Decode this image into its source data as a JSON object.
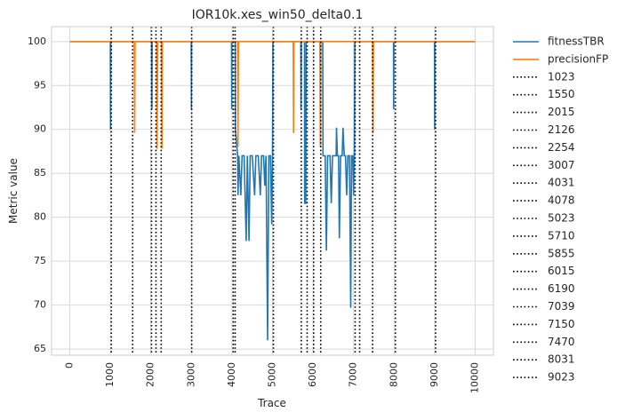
{
  "chart_data": {
    "type": "line",
    "title": "IOR10k.xes_win50_delta0.1",
    "xlabel": "Trace",
    "ylabel": "Metric value",
    "xlim": [
      -450,
      10450
    ],
    "ylim": [
      64.3,
      101.7
    ],
    "x_ticks": [
      0,
      1000,
      2000,
      3000,
      4000,
      5000,
      6000,
      7000,
      8000,
      9000,
      10000
    ],
    "y_ticks": [
      65,
      70,
      75,
      80,
      85,
      90,
      95,
      100
    ],
    "grid": true,
    "legend_position": "outside-right",
    "series": [
      {
        "name": "fitnessTBR",
        "color": "#1f77b4",
        "points": [
          [
            0,
            100
          ],
          [
            1000,
            100
          ],
          [
            1005,
            90
          ],
          [
            1010,
            100
          ],
          [
            2020,
            100
          ],
          [
            2025,
            92.3
          ],
          [
            2030,
            100
          ],
          [
            2995,
            100
          ],
          [
            3000,
            92.3
          ],
          [
            3005,
            100
          ],
          [
            3990,
            100
          ],
          [
            3995,
            92.3
          ],
          [
            4000,
            100
          ],
          [
            4080,
            100
          ],
          [
            4085,
            90
          ],
          [
            4140,
            87
          ],
          [
            4150,
            82.5
          ],
          [
            4170,
            87
          ],
          [
            4220,
            82.5
          ],
          [
            4250,
            87
          ],
          [
            4300,
            87
          ],
          [
            4350,
            77.3
          ],
          [
            4380,
            87
          ],
          [
            4420,
            77.3
          ],
          [
            4450,
            87
          ],
          [
            4500,
            87
          ],
          [
            4560,
            82.5
          ],
          [
            4590,
            87
          ],
          [
            4650,
            87
          ],
          [
            4700,
            82.5
          ],
          [
            4730,
            87
          ],
          [
            4780,
            87
          ],
          [
            4810,
            83.6
          ],
          [
            4840,
            87
          ],
          [
            4880,
            66
          ],
          [
            4910,
            87
          ],
          [
            4950,
            87
          ],
          [
            4980,
            79.2
          ],
          [
            5000,
            87
          ],
          [
            5010,
            100
          ],
          [
            5700,
            100
          ],
          [
            5705,
            92.3
          ],
          [
            5710,
            100
          ],
          [
            5790,
            100
          ],
          [
            5795,
            81.5
          ],
          [
            5805,
            87
          ],
          [
            5820,
            81.5
          ],
          [
            5830,
            100
          ],
          [
            6240,
            100
          ],
          [
            6245,
            87
          ],
          [
            6300,
            87
          ],
          [
            6330,
            76.2
          ],
          [
            6360,
            87
          ],
          [
            6420,
            87
          ],
          [
            6450,
            81.6
          ],
          [
            6480,
            87
          ],
          [
            6540,
            87
          ],
          [
            6570,
            87
          ],
          [
            6580,
            90.2
          ],
          [
            6600,
            87
          ],
          [
            6630,
            87
          ],
          [
            6650,
            77.6
          ],
          [
            6680,
            87
          ],
          [
            6720,
            87
          ],
          [
            6740,
            90.2
          ],
          [
            6770,
            87
          ],
          [
            6800,
            87
          ],
          [
            6830,
            82.5
          ],
          [
            6860,
            87
          ],
          [
            6900,
            87
          ],
          [
            6930,
            69.7
          ],
          [
            6950,
            87
          ],
          [
            6980,
            87
          ],
          [
            7000,
            82.5
          ],
          [
            7020,
            87
          ],
          [
            7030,
            100
          ],
          [
            7985,
            100
          ],
          [
            7990,
            92.3
          ],
          [
            7995,
            100
          ],
          [
            8995,
            100
          ],
          [
            9000,
            90
          ],
          [
            9005,
            100
          ],
          [
            10000,
            100
          ]
        ]
      },
      {
        "name": "precisionFP",
        "color": "#ff7f0e",
        "points": [
          [
            0,
            100
          ],
          [
            1590,
            100
          ],
          [
            1600,
            89.6
          ],
          [
            1610,
            100
          ],
          [
            2140,
            100
          ],
          [
            2150,
            87.8
          ],
          [
            2170,
            100
          ],
          [
            2260,
            100
          ],
          [
            2275,
            87.8
          ],
          [
            2285,
            100
          ],
          [
            4140,
            100
          ],
          [
            4150,
            88
          ],
          [
            4160,
            100
          ],
          [
            5510,
            100
          ],
          [
            5520,
            89.6
          ],
          [
            5530,
            100
          ],
          [
            6170,
            100
          ],
          [
            6180,
            88
          ],
          [
            6190,
            100
          ],
          [
            7470,
            100
          ],
          [
            7480,
            89.6
          ],
          [
            7490,
            100
          ],
          [
            10000,
            100
          ]
        ]
      }
    ],
    "drift_lines": [
      {
        "label": "1023",
        "x": 1023
      },
      {
        "label": "1550",
        "x": 1550
      },
      {
        "label": "2015",
        "x": 2015
      },
      {
        "label": "2126",
        "x": 2126
      },
      {
        "label": "2254",
        "x": 2254
      },
      {
        "label": "3007",
        "x": 3007
      },
      {
        "label": "4031",
        "x": 4031
      },
      {
        "label": "4078",
        "x": 4078
      },
      {
        "label": "5023",
        "x": 5023
      },
      {
        "label": "5710",
        "x": 5710
      },
      {
        "label": "5855",
        "x": 5855
      },
      {
        "label": "6015",
        "x": 6015
      },
      {
        "label": "6190",
        "x": 6190
      },
      {
        "label": "7039",
        "x": 7039
      },
      {
        "label": "7150",
        "x": 7150
      },
      {
        "label": "7470",
        "x": 7470
      },
      {
        "label": "8031",
        "x": 8031
      },
      {
        "label": "9023",
        "x": 9023
      }
    ],
    "drift_line_color": "#000000"
  }
}
